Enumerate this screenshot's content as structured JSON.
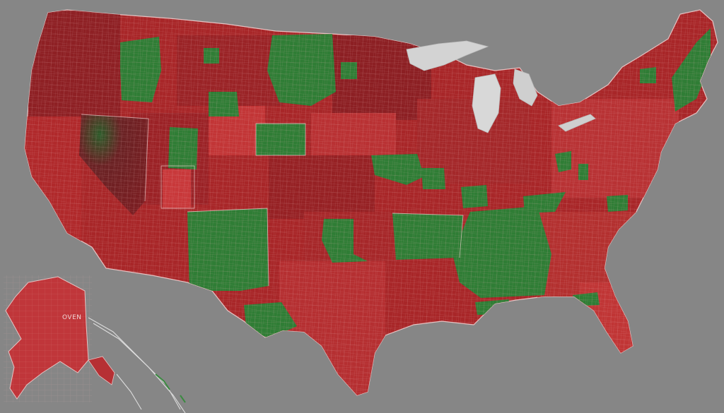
{
  "map": {
    "background_color": "#868686",
    "land_base_color": "#b02a2a",
    "border_color": "#e6b3b3",
    "water_color": "#d6d6d6",
    "palette": {
      "deep_red": "#8a1e22",
      "mid_red": "#a82628",
      "bright_red": "#c8383a",
      "green": "#2f7d35",
      "dark_green": "#255f2a"
    },
    "labels": {
      "alaska_label": "OVEN"
    }
  }
}
